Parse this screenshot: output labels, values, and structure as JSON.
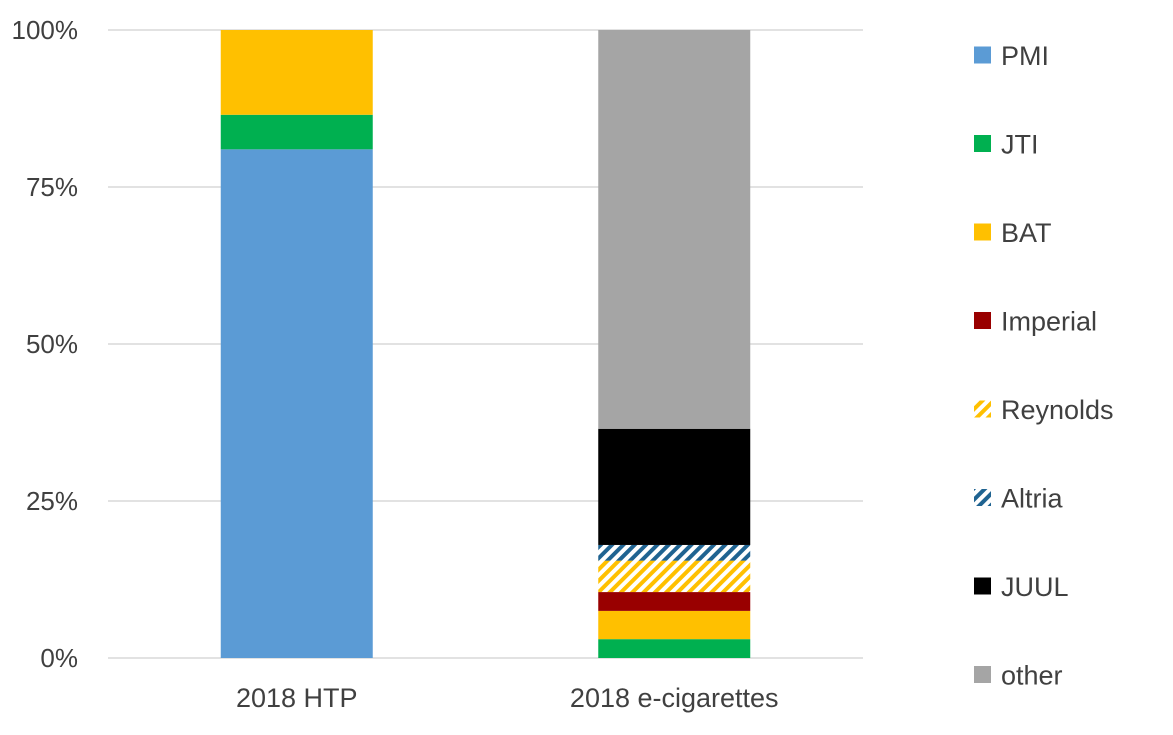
{
  "chart_data": {
    "type": "bar",
    "stacked": true,
    "categories": [
      "2018 HTP",
      "2018 e-cigarettes"
    ],
    "series": [
      {
        "name": "PMI",
        "color": "#5B9BD5",
        "pattern": "solid",
        "values": [
          81,
          0
        ]
      },
      {
        "name": "JTI",
        "color": "#00B050",
        "pattern": "solid",
        "values": [
          5.5,
          3
        ]
      },
      {
        "name": "BAT",
        "color": "#FFC000",
        "pattern": "solid",
        "values": [
          13.5,
          4.5
        ]
      },
      {
        "name": "Imperial",
        "color": "#990000",
        "pattern": "solid",
        "values": [
          0,
          3
        ]
      },
      {
        "name": "Reynolds",
        "color": "#FFC000",
        "pattern": "hatch",
        "values": [
          0,
          5
        ]
      },
      {
        "name": "Altria",
        "color": "#1F6391",
        "pattern": "hatch",
        "values": [
          0,
          2.5
        ]
      },
      {
        "name": "JUUL",
        "color": "#000000",
        "pattern": "solid",
        "values": [
          0,
          18.5
        ]
      },
      {
        "name": "other",
        "color": "#A5A5A5",
        "pattern": "solid",
        "values": [
          0,
          63.5
        ]
      }
    ],
    "ylim": [
      0,
      100
    ],
    "yticks": [
      0,
      25,
      50,
      75,
      100
    ],
    "ytick_labels": [
      "0%",
      "25%",
      "50%",
      "75%",
      "100%"
    ],
    "grid": true,
    "legend_position": "right"
  }
}
